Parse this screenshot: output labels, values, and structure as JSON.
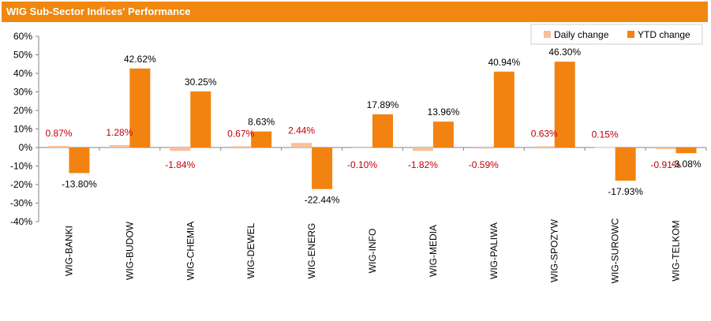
{
  "header": {
    "title": "WIG Sub-Sector Indices' Performance"
  },
  "chart_data": {
    "type": "bar",
    "title": "WIG Sub-Sector Indices' Performance",
    "xlabel": "",
    "ylabel": "",
    "categories": [
      "WIG-BANKI",
      "WIG-BUDOW",
      "WIG-CHEMIA",
      "WIG-DEWEL",
      "WIG-ENERG",
      "WIG-INFO",
      "WIG-MEDIA",
      "WIG-PALIWA",
      "WIG-SPOZYW",
      "WIG-SUROWC",
      "WIG-TELKOM"
    ],
    "series": [
      {
        "name": "Daily change",
        "color": "#f9c09a",
        "values": [
          0.87,
          1.28,
          -1.84,
          0.67,
          2.44,
          -0.1,
          -1.82,
          -0.59,
          0.63,
          0.15,
          -0.91
        ],
        "labels": [
          "0.87%",
          "1.28%",
          "-1.84%",
          "0.67%",
          "2.44%",
          "-0.10%",
          "-1.82%",
          "-0.59%",
          "0.63%",
          "0.15%",
          "-0.91%"
        ],
        "label_color": "#c0000a"
      },
      {
        "name": "YTD change",
        "color": "#f28310",
        "values": [
          -13.8,
          42.62,
          30.25,
          8.63,
          -22.44,
          17.89,
          13.96,
          40.94,
          46.3,
          -17.93,
          -3.08
        ],
        "labels": [
          "-13.80%",
          "42.62%",
          "30.25%",
          "8.63%",
          "-22.44%",
          "17.89%",
          "13.96%",
          "40.94%",
          "46.30%",
          "-17.93%",
          "-3.08%"
        ],
        "label_color": "#000000"
      }
    ],
    "ylim": [
      -40,
      60
    ],
    "yticks": [
      60,
      50,
      40,
      30,
      20,
      10,
      0,
      -10,
      -20,
      -30,
      -40
    ],
    "ytick_labels": [
      "60%",
      "50%",
      "40%",
      "30%",
      "20%",
      "10%",
      "0%",
      "-10%",
      "-20%",
      "-30%",
      "-40%"
    ],
    "legend": {
      "position": "top-right"
    },
    "grid": false
  }
}
